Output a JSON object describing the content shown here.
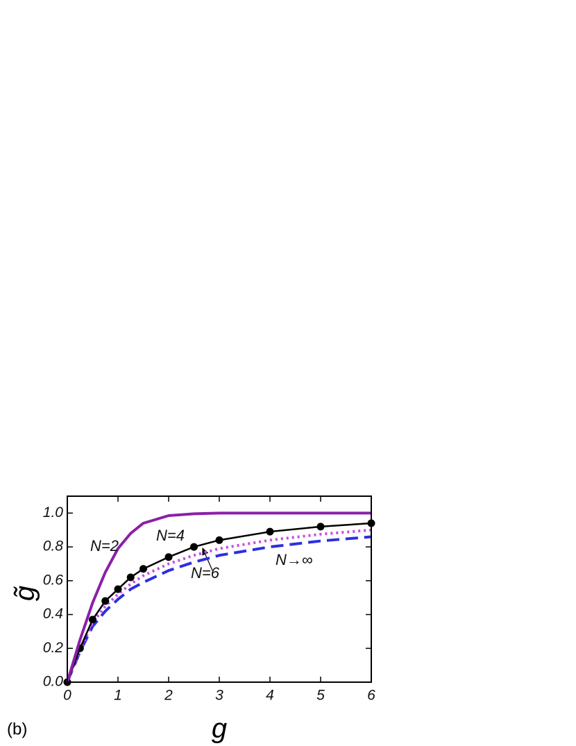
{
  "chart_data": {
    "type": "line",
    "x_label": "g",
    "y_label": "g̃",
    "panel_label": "(b)",
    "xlim": [
      0,
      6
    ],
    "ylim": [
      0,
      1.1
    ],
    "xticks": [
      0,
      1,
      2,
      3,
      4,
      5,
      6
    ],
    "yticks": [
      {
        "value": 0,
        "label": "0.0"
      },
      0.2,
      0.4,
      0.6,
      0.8,
      {
        "value": 1,
        "label": "1.0"
      }
    ],
    "x": [
      0,
      0.25,
      0.5,
      0.75,
      1,
      1.25,
      1.5,
      2,
      2.5,
      3,
      4,
      5,
      6
    ],
    "series": [
      {
        "name": "N=2",
        "color": "#8b1fa8",
        "style": "solid",
        "values": [
          0,
          0.25,
          0.47,
          0.65,
          0.79,
          0.88,
          0.94,
          0.985,
          0.996,
          1.0,
          1.0,
          1.0,
          1.0
        ]
      },
      {
        "name": "N=4",
        "color": "#000000",
        "style": "markers",
        "values": [
          0,
          0.2,
          0.37,
          0.48,
          0.55,
          0.62,
          0.67,
          0.74,
          0.8,
          0.84,
          0.89,
          0.92,
          0.94
        ]
      },
      {
        "name": "N=6",
        "color": "#c94ae6",
        "style": "dotted",
        "values": [
          0,
          0.19,
          0.35,
          0.45,
          0.52,
          0.58,
          0.63,
          0.7,
          0.75,
          0.79,
          0.84,
          0.875,
          0.9
        ]
      },
      {
        "name": "N→∞",
        "color": "#2b2fe0",
        "style": "dashed",
        "values": [
          0,
          0.18,
          0.33,
          0.42,
          0.49,
          0.55,
          0.59,
          0.66,
          0.71,
          0.75,
          0.8,
          0.835,
          0.86
        ]
      }
    ]
  }
}
